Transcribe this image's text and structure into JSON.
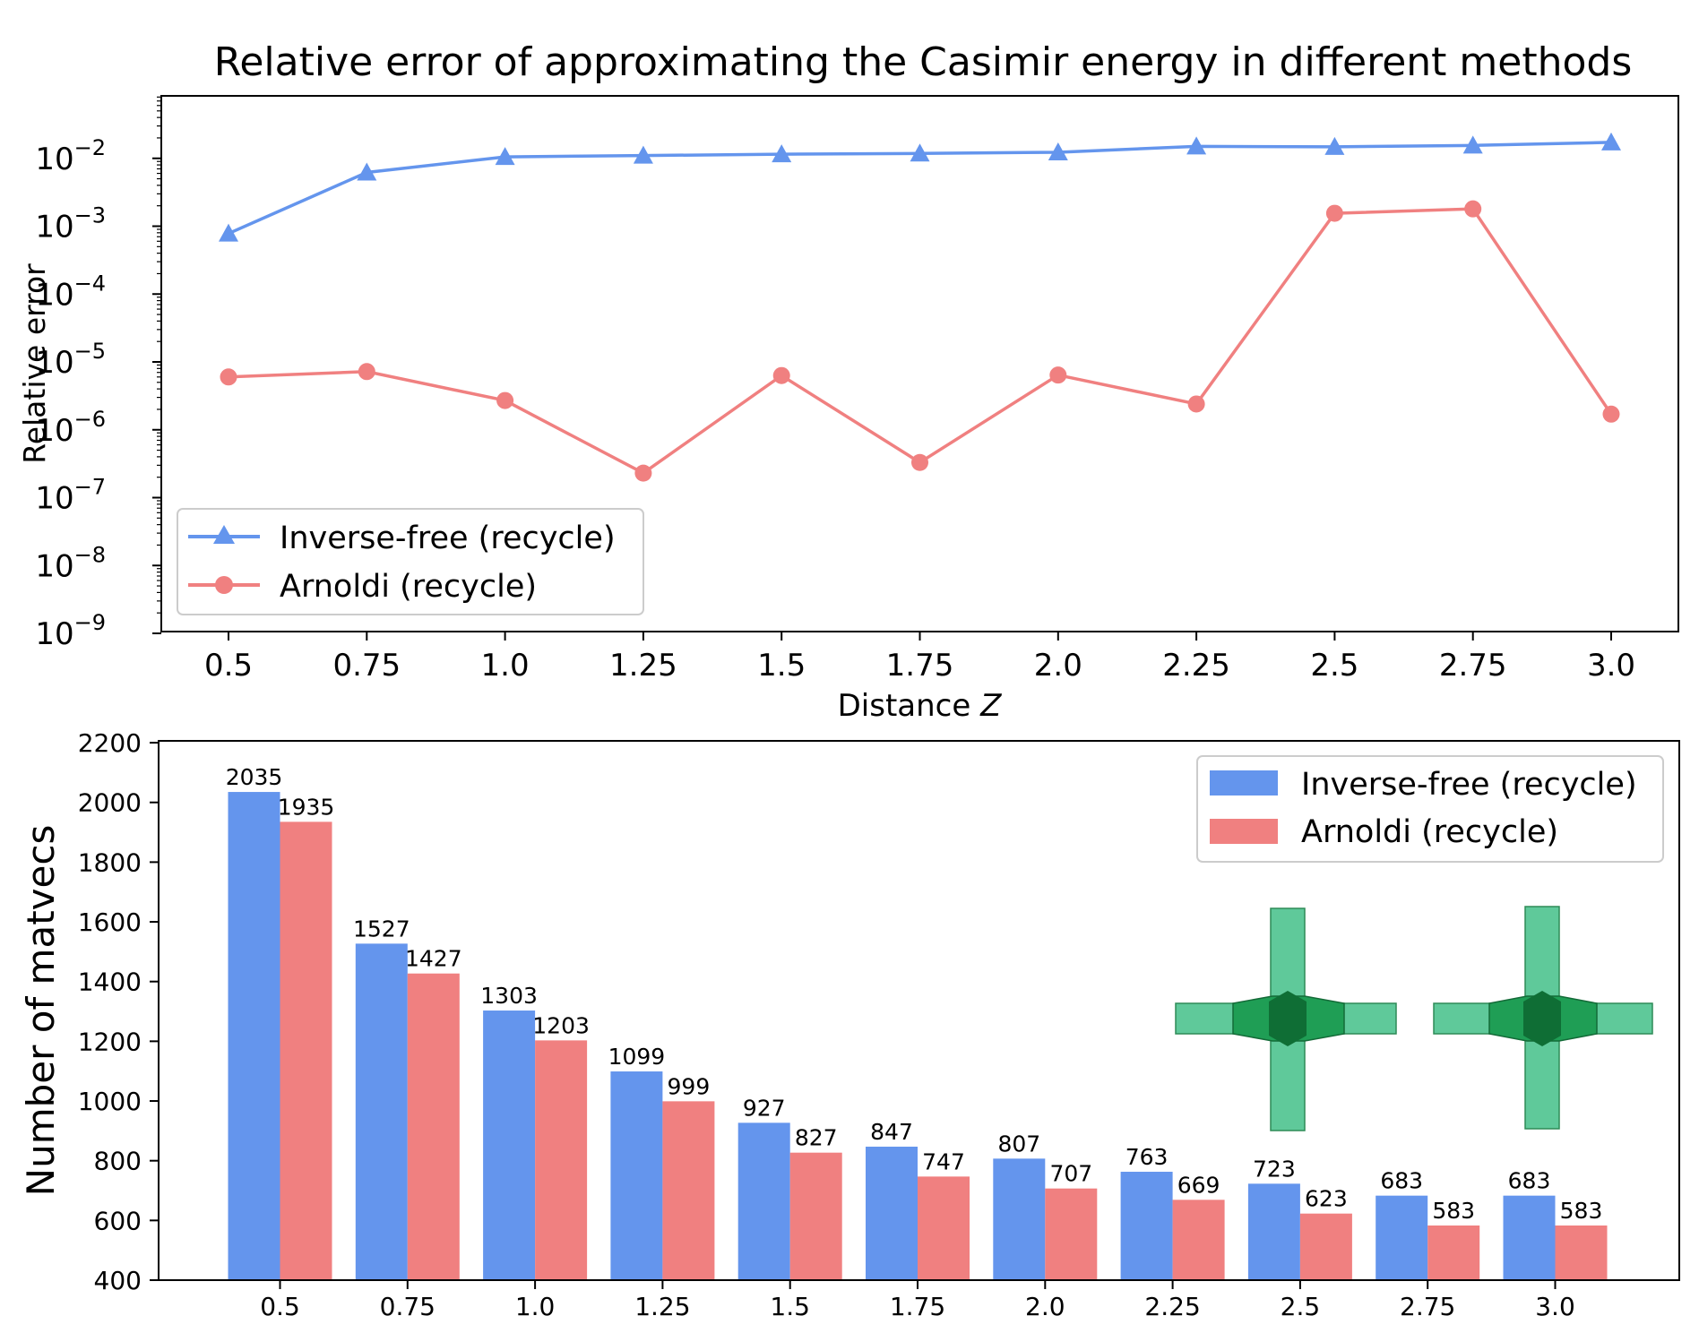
{
  "chart_data": [
    {
      "type": "line",
      "title": "Relative error of approximating the Casimir energy in different methods",
      "xlabel": "Distance ",
      "xlabel_var": "Z",
      "ylabel": "Relative error",
      "yscale": "log",
      "ylim": [
        1e-09,
        0.1
      ],
      "ytick_exponents": [
        "−2",
        "−3",
        "−4",
        "−5",
        "−6",
        "−7",
        "−8",
        "−9"
      ],
      "ytick_base": "10",
      "categories": [
        "0.5",
        "0.75",
        "1.0",
        "1.25",
        "1.5",
        "1.75",
        "2.0",
        "2.25",
        "2.5",
        "2.75",
        "3.0"
      ],
      "series": [
        {
          "name": "Inverse-free (recycle)",
          "color": "#6495ED",
          "marker": "triangle",
          "values": [
            0.00078,
            0.0062,
            0.0105,
            0.011,
            0.0115,
            0.0118,
            0.0123,
            0.015,
            0.0148,
            0.0155,
            0.0172
          ]
        },
        {
          "name": "Arnoldi (recycle)",
          "color": "#F08080",
          "marker": "circle",
          "values": [
            6e-06,
            7.2e-06,
            2.7e-06,
            2.3e-07,
            6.3e-06,
            3.3e-07,
            6.4e-06,
            2.4e-06,
            0.00155,
            0.0018,
            1.7e-06
          ]
        }
      ],
      "legend": "lower-left"
    },
    {
      "type": "bar",
      "ylabel": "Number of matvecs",
      "ylim": [
        400,
        2200
      ],
      "yticks": [
        "400",
        "600",
        "800",
        "1000",
        "1200",
        "1400",
        "1600",
        "1800",
        "2000",
        "2200"
      ],
      "categories": [
        "0.5",
        "0.75",
        "1.0",
        "1.25",
        "1.5",
        "1.75",
        "2.0",
        "2.25",
        "2.5",
        "2.75",
        "3.0"
      ],
      "series": [
        {
          "name": "Inverse-free (recycle)",
          "color": "#6495ED",
          "values": [
            2035,
            1527,
            1303,
            1099,
            927,
            847,
            807,
            763,
            723,
            683,
            683
          ]
        },
        {
          "name": "Arnoldi (recycle)",
          "color": "#F08080",
          "values": [
            1935,
            1427,
            1203,
            999,
            827,
            747,
            707,
            669,
            623,
            583,
            583
          ]
        }
      ],
      "legend": "top-right",
      "inset": "two green cross-shaped mesh objects"
    }
  ]
}
